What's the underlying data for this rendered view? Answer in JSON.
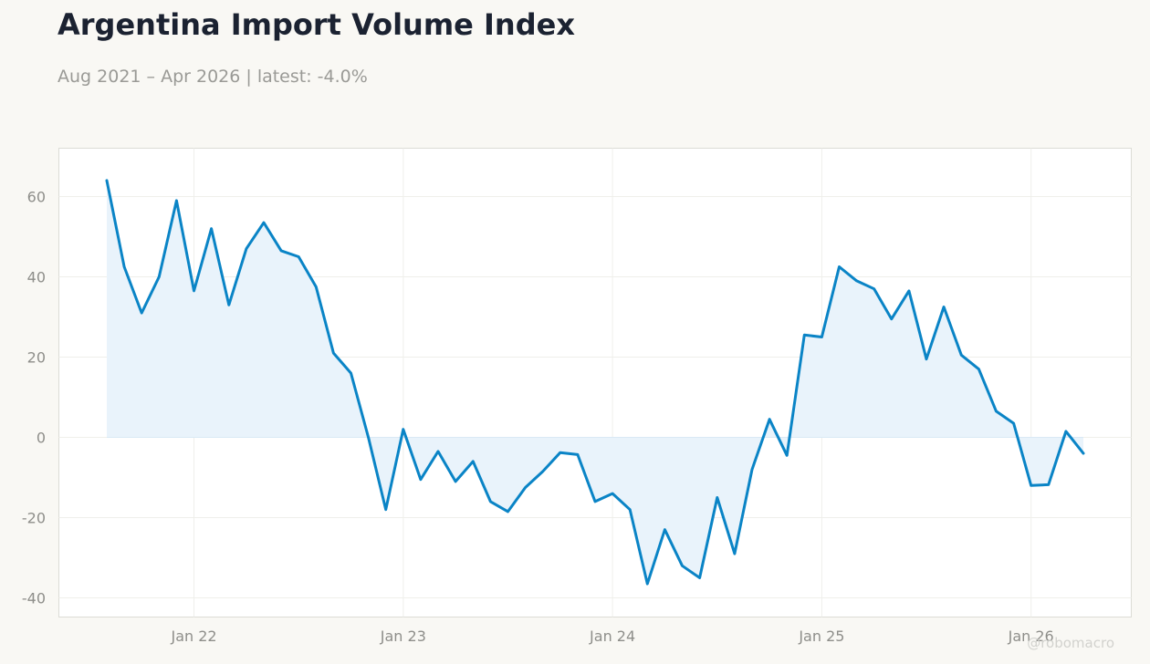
{
  "header": {
    "title": "Argentina Import Volume Index",
    "subtitle": "Aug 2021 – Apr 2026 | latest: -4.0%"
  },
  "watermark": "@robomacro",
  "colors": {
    "line": "#0a84c6",
    "fill": "#e9f3fb",
    "background": "#f9f8f4",
    "plot_background": "#ffffff",
    "grid": "#efefeb",
    "axis_text": "#8e8e8a"
  },
  "chart_data": {
    "type": "area",
    "title": "Argentina Import Volume Index",
    "subtitle": "Aug 2021 – Apr 2026 | latest: -4.0%",
    "xlabel": "",
    "ylabel": "",
    "x_start": "2021-08",
    "x_end": "2026-04",
    "x_ticks": [
      "Jan 22",
      "Jan 23",
      "Jan 24",
      "Jan 25",
      "Jan 26"
    ],
    "y_ticks": [
      60,
      40,
      20,
      0,
      -20,
      -40
    ],
    "ylim": [
      -45,
      72
    ],
    "grid": true,
    "baseline": 0,
    "series": [
      {
        "x": [
          "2021-08",
          "2021-09",
          "2021-10",
          "2021-11",
          "2021-12",
          "2022-01",
          "2022-02",
          "2022-03",
          "2022-04",
          "2022-05",
          "2022-06",
          "2022-07",
          "2022-08",
          "2022-09",
          "2022-10",
          "2022-11",
          "2022-12",
          "2023-01",
          "2023-02",
          "2023-03",
          "2023-04",
          "2023-05",
          "2023-06",
          "2023-07",
          "2023-08",
          "2023-09",
          "2023-10",
          "2023-11",
          "2023-12",
          "2024-01",
          "2024-02",
          "2024-03",
          "2024-04",
          "2024-05",
          "2024-06",
          "2024-07",
          "2024-08",
          "2024-09",
          "2024-10",
          "2024-11",
          "2024-12",
          "2025-01",
          "2025-02",
          "2025-03",
          "2025-04",
          "2025-05",
          "2025-06",
          "2025-07",
          "2025-08",
          "2025-09",
          "2025-10",
          "2025-11",
          "2025-12",
          "2026-01",
          "2026-02",
          "2026-03",
          "2026-04"
        ],
        "values": [
          64.0,
          42.5,
          31.0,
          40.0,
          59.0,
          36.5,
          52.0,
          33.0,
          47.0,
          53.5,
          46.5,
          45.0,
          37.5,
          21.0,
          16.0,
          0.0,
          -18.0,
          2.0,
          -10.5,
          -3.5,
          -11.0,
          -6.0,
          -16.0,
          -18.5,
          -12.5,
          -8.5,
          -3.8,
          -4.3,
          -16.0,
          -14.0,
          -18.0,
          -36.5,
          -23.0,
          -32.0,
          -35.0,
          -15.0,
          -29.0,
          -8.0,
          4.5,
          -4.5,
          25.5,
          25.0,
          42.5,
          39.0,
          37.0,
          29.5,
          36.5,
          19.5,
          32.5,
          20.5,
          17.0,
          6.5,
          3.5,
          -12.0,
          -11.8,
          1.5,
          -4.0
        ]
      }
    ]
  }
}
